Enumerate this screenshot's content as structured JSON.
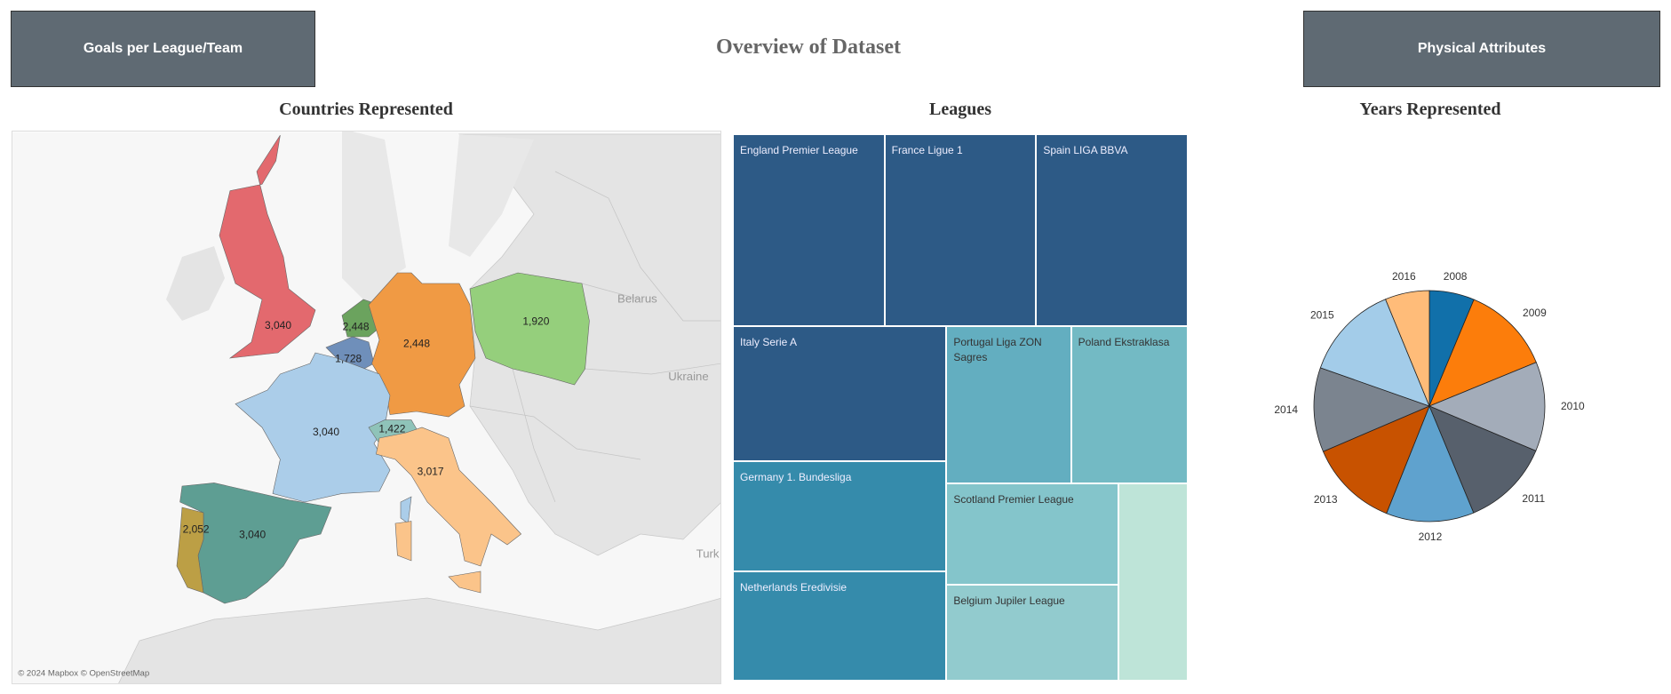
{
  "header": {
    "title": "Overview of Dataset",
    "buttons": [
      "Goals per League/Team",
      "Physical Attributes"
    ]
  },
  "chart_data": [
    {
      "type": "map",
      "title": "Countries Represented",
      "values": [
        3040,
        2448,
        1728,
        2448,
        1920,
        3040,
        1422,
        3017,
        3040,
        2052
      ],
      "value_labels": [
        "3,040",
        "2,448",
        "1,728",
        "2,448",
        "1,920",
        "3,040",
        "1,422",
        "3,017",
        "3,040",
        "2,052"
      ],
      "colors": [
        "#e3696e",
        "#6ba35e",
        "#6f8fba",
        "#f09a44",
        "#95cf7c",
        "#abcde9",
        "#8fc3b9",
        "#fbc48a",
        "#5e9e93",
        "#bc9f45"
      ],
      "place_labels": [
        "Belarus",
        "Ukraine",
        "Turk"
      ],
      "attribution": "© 2024 Mapbox © OpenStreetMap"
    },
    {
      "type": "treemap",
      "title": "Leagues",
      "categories": [
        "England Premier League",
        "France Ligue 1",
        "Spain LIGA BBVA",
        "Italy Serie A",
        "Germany 1. Bundesliga",
        "Netherlands Eredivisie",
        "Portugal Liga ZON Sagres",
        "Poland Ekstraklasa",
        "Scotland Premier League",
        "Belgium Jupiler League",
        null
      ],
      "values": [
        3040,
        3040,
        3040,
        3017,
        2448,
        2448,
        2052,
        1920,
        1824,
        1728,
        1422
      ],
      "colors": [
        "#2d5a86",
        "#2d5a86",
        "#2d5a86",
        "#2d5a86",
        "#358bab",
        "#358bab",
        "#63aec0",
        "#73bac4",
        "#84c5cb",
        "#92cbce",
        "#bee4d8"
      ]
    },
    {
      "type": "pie",
      "title": "Years Represented",
      "categories": [
        "2008",
        "2009",
        "2010",
        "2011",
        "2012",
        "2013",
        "2014",
        "2015",
        "2016"
      ],
      "values": [
        6.3,
        12.5,
        12.5,
        12.4,
        12.3,
        12.5,
        11.8,
        13.4,
        6.2
      ],
      "colors": [
        "#1170aa",
        "#fc7d0b",
        "#a3acb9",
        "#57606c",
        "#5fa2ce",
        "#c85200",
        "#7b848f",
        "#a3cce9",
        "#ffbc79"
      ]
    }
  ]
}
